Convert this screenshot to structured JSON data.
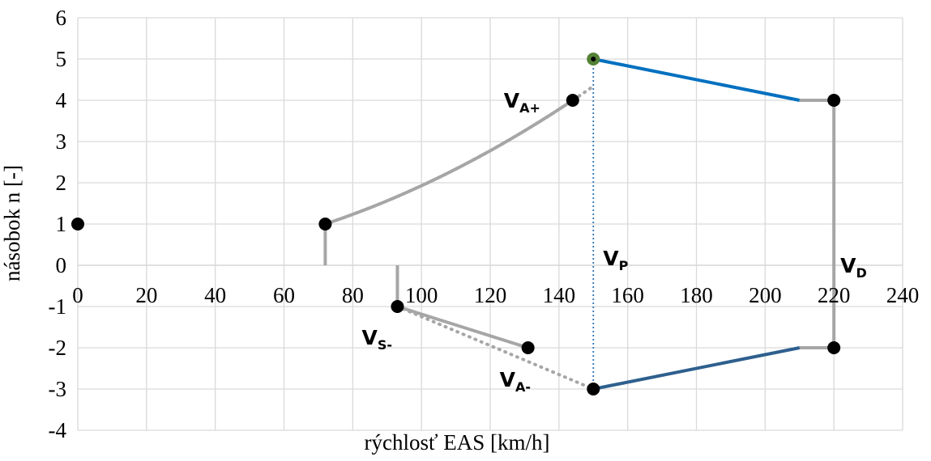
{
  "chart_data": {
    "type": "scatter",
    "title": "",
    "xlabel": "rýchlosť EAS [km/h]",
    "ylabel": "násobok n [-]",
    "xlim": [
      0,
      240
    ],
    "ylim": [
      -4,
      6
    ],
    "x_ticks": [
      0,
      20,
      40,
      60,
      80,
      100,
      120,
      140,
      160,
      180,
      200,
      220,
      240
    ],
    "y_ticks": [
      -4,
      -3,
      -2,
      -1,
      0,
      1,
      2,
      3,
      4,
      5,
      6
    ],
    "grid": true,
    "x_tick_labels_at_y": 0,
    "colors": {
      "gray": "#a6a6a6",
      "blue_upper": "#0070c0",
      "blue_lower": "#2e5f8e",
      "vp_line": "#2e75b6",
      "marker": "#000000",
      "marker_green": "#548235",
      "grid": "#d9d9d9"
    },
    "series": [
      {
        "style": "solid",
        "color": "gray",
        "curve": "quadratic_positive",
        "x_range": [
          72,
          144
        ]
      },
      {
        "style": "dotted",
        "color": "gray",
        "curve": "quadratic_positive",
        "x_range": [
          72,
          150
        ]
      },
      {
        "style": "solid",
        "color": "gray",
        "points": [
          [
            72,
            0
          ],
          [
            72,
            1
          ]
        ]
      },
      {
        "style": "solid",
        "color": "gray",
        "points": [
          [
            93,
            0
          ],
          [
            93,
            -1
          ]
        ]
      },
      {
        "style": "solid",
        "color": "gray",
        "points": [
          [
            93,
            -1
          ],
          [
            131,
            -2
          ]
        ]
      },
      {
        "style": "dotted",
        "color": "gray",
        "points": [
          [
            93,
            -1
          ],
          [
            150,
            -3
          ]
        ]
      },
      {
        "style": "solid",
        "color": "blue_upper",
        "points": [
          [
            150,
            5
          ],
          [
            210,
            4
          ]
        ]
      },
      {
        "style": "solid",
        "color": "gray",
        "points": [
          [
            210,
            4
          ],
          [
            220,
            4
          ]
        ]
      },
      {
        "style": "solid",
        "color": "gray",
        "points": [
          [
            220,
            4
          ],
          [
            220,
            -2
          ]
        ]
      },
      {
        "style": "solid",
        "color": "gray",
        "points": [
          [
            220,
            -2
          ],
          [
            210,
            -2
          ]
        ]
      },
      {
        "style": "solid",
        "color": "blue_lower",
        "points": [
          [
            210,
            -2
          ],
          [
            150,
            -3
          ]
        ]
      },
      {
        "style": "dotted-thin",
        "color": "vp_line",
        "points": [
          [
            150,
            -3
          ],
          [
            150,
            5
          ]
        ]
      }
    ],
    "points": [
      {
        "x": 0,
        "y": 1,
        "color": "marker"
      },
      {
        "x": 72,
        "y": 1,
        "color": "marker"
      },
      {
        "x": 93,
        "y": -1,
        "color": "marker"
      },
      {
        "x": 131,
        "y": -2,
        "color": "marker"
      },
      {
        "x": 144,
        "y": 4,
        "color": "marker"
      },
      {
        "x": 150,
        "y": 5,
        "color": "marker_green"
      },
      {
        "x": 150,
        "y": -3,
        "color": "marker"
      },
      {
        "x": 220,
        "y": 4,
        "color": "marker"
      },
      {
        "x": 220,
        "y": -2,
        "color": "marker"
      }
    ],
    "annotations": [
      {
        "name": "va-plus",
        "main": "V",
        "sub": "A+",
        "x": 144,
        "y": 4
      },
      {
        "name": "vp",
        "main": "V",
        "sub": "P",
        "x": 150,
        "y": 0
      },
      {
        "name": "vd",
        "main": "V",
        "sub": "D",
        "x": 220,
        "y": 0
      },
      {
        "name": "vs-minus",
        "main": "V",
        "sub": "S-",
        "x": 93,
        "y": -1
      },
      {
        "name": "va-minus",
        "main": "V",
        "sub": "A-",
        "x": 131,
        "y": -2
      }
    ]
  }
}
